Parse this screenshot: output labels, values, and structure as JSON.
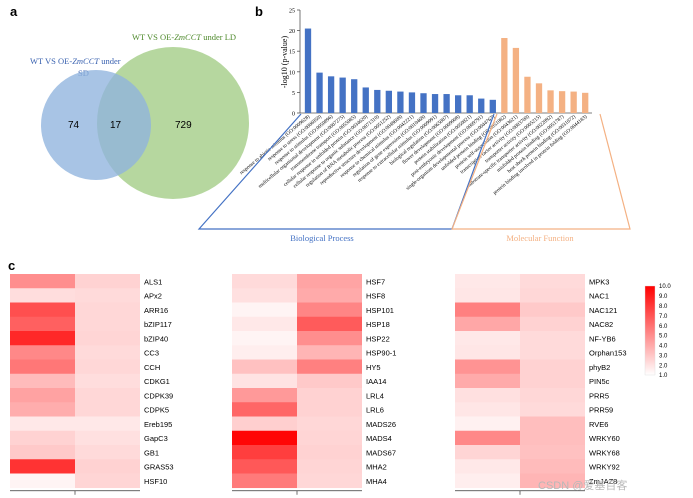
{
  "panels": {
    "a": "a",
    "b": "b",
    "c": "c"
  },
  "venn": {
    "left_title_line1": "WT VS OE-",
    "left_title_italic": "ZmCCT",
    "left_title_suffix": " under",
    "left_title_line2": "SD",
    "right_title_prefix": "WT VS OE-",
    "right_title_italic": "ZmCCT",
    "right_title_suffix": " under LD",
    "left_only": "74",
    "overlap": "17",
    "right_only": "729",
    "left_color": "#8fb3de",
    "right_color": "#a9d08e"
  },
  "chart_data": [
    {
      "type": "bar",
      "title": "",
      "ylabel": "-log10 (p-value)",
      "ylim": [
        0,
        25
      ],
      "yticks": [
        0,
        5,
        10,
        15,
        20,
        25
      ],
      "groups": [
        {
          "name": "Biological Process",
          "color": "#4472c4"
        },
        {
          "name": "Molecular Function",
          "color": "#f4b183"
        }
      ],
      "categories": [
        "response to abiotic stimulus (GO:0009628)",
        "response to stress (GO:0006950)",
        "response to stimulus (GO:0050896)",
        "multicellular organismal development (GO:0007275)",
        "transmembrane transport (GO:0055085)",
        "cellular response to unfolded protein (GO:0034620)",
        "cellular response to organic substance (GO:0071310)",
        "regulation of RNA metabolic process (GO:0051252)",
        "reproductive structure development (GO:0048608)",
        "response to chemical stimulus (GO:0042221)",
        "regulation of gene expression (GO:0010468)",
        "response to extracellular stimulus (GO:0009991)",
        "biological regulation (GO:0065007)",
        "flower development (GO:0009908)",
        "protein stabilization (GO:0050821)",
        "post-embryonic development (GO:0009791)",
        "single-organism developmental process (GO:0044767)",
        "unfolded protein binding (GO:0051082)",
        "protein self-association (GO:0043621)",
        "transcription factor activity (GO:0003700)",
        "transporter activity (GO:0005215)",
        "substrate-specific transporter activity (GO:0022892)",
        "misfolded protein binding (GO:0051787)",
        "heat shock protein binding (GO:0031072)",
        "protein binding involved in protein folding (GO:0044183)"
      ],
      "group_index": [
        0,
        0,
        0,
        0,
        0,
        0,
        0,
        0,
        0,
        0,
        0,
        0,
        0,
        0,
        0,
        0,
        0,
        1,
        1,
        1,
        1,
        1,
        1,
        1,
        1
      ],
      "values": [
        20.5,
        9.8,
        8.9,
        8.6,
        8.2,
        6.2,
        5.6,
        5.4,
        5.2,
        5.0,
        4.8,
        4.6,
        4.6,
        4.3,
        4.3,
        3.5,
        3.2,
        18.2,
        15.8,
        8.8,
        7.2,
        5.5,
        5.3,
        5.2,
        4.9
      ],
      "group_labels": [
        "Biological Process",
        "Molecular Function"
      ]
    },
    {
      "type": "heatmap",
      "xlabel": "LD Condition",
      "columns": [
        "WT",
        "OE-",
        "ZmCCT"
      ],
      "color_scale": {
        "min": 1.0,
        "max": 10.0,
        "low": "#ffffff",
        "high": "#ff0000",
        "ticks": [
          "10.0",
          "9.0",
          "8.0",
          "7.0",
          "6.0",
          "5.0",
          "4.0",
          "3.0",
          "2.0",
          "1.0"
        ]
      },
      "blocks": [
        {
          "genes": [
            "ALS1",
            "APx2",
            "ARR16",
            "bZIP117",
            "bZIP40",
            "CC3",
            "CCH",
            "CDKG1",
            "CDPK39",
            "CDPK5",
            "Ereb195",
            "GapC3",
            "GB1",
            "GRAS53",
            "HSF10"
          ],
          "wt": [
            5.0,
            2.2,
            7.2,
            6.6,
            8.6,
            5.2,
            5.8,
            3.4,
            4.3,
            3.9,
            1.8,
            2.6,
            2.9,
            8.2,
            1.4
          ],
          "oe": [
            2.6,
            2.3,
            2.4,
            2.4,
            2.5,
            2.3,
            2.4,
            2.2,
            2.4,
            2.4,
            1.8,
            2.1,
            2.3,
            2.6,
            2.5
          ]
        },
        {
          "genes": [
            "HSF7",
            "HSF8",
            "HSP101",
            "HSP18",
            "HSP22",
            "HSP90-1",
            "HY5",
            "IAA14",
            "LRL4",
            "LRL6",
            "MADS26",
            "MADS4",
            "MADS67",
            "MHA2",
            "MHA4"
          ],
          "wt": [
            2.3,
            2.1,
            1.4,
            1.8,
            1.4,
            1.6,
            3.2,
            2.0,
            4.6,
            6.4,
            2.7,
            9.8,
            7.8,
            6.9,
            5.7
          ],
          "oe": [
            4.2,
            4.0,
            5.3,
            6.8,
            5.0,
            3.6,
            5.5,
            2.9,
            2.6,
            2.6,
            2.4,
            2.5,
            2.6,
            2.5,
            2.4
          ]
        },
        {
          "genes": [
            "MPK3",
            "NAC1",
            "NAC121",
            "NAC82",
            "NF-YB6",
            "Orphan153",
            "phyB2",
            "PIN5c",
            "PRR5",
            "PRR59",
            "RVE6",
            "WRKY60",
            "WRKY68",
            "WRKY92",
            "ZmJAZ8"
          ],
          "wt": [
            1.8,
            1.9,
            5.5,
            4.1,
            1.8,
            1.9,
            4.8,
            4.0,
            2.1,
            1.9,
            1.5,
            5.2,
            2.5,
            1.8,
            1.6
          ],
          "oe": [
            2.3,
            2.4,
            2.9,
            2.6,
            2.3,
            2.3,
            2.6,
            2.6,
            2.4,
            2.3,
            3.3,
            3.3,
            3.2,
            3.4,
            3.6
          ]
        }
      ]
    }
  ],
  "watermark": "CSDN @爱基百客"
}
